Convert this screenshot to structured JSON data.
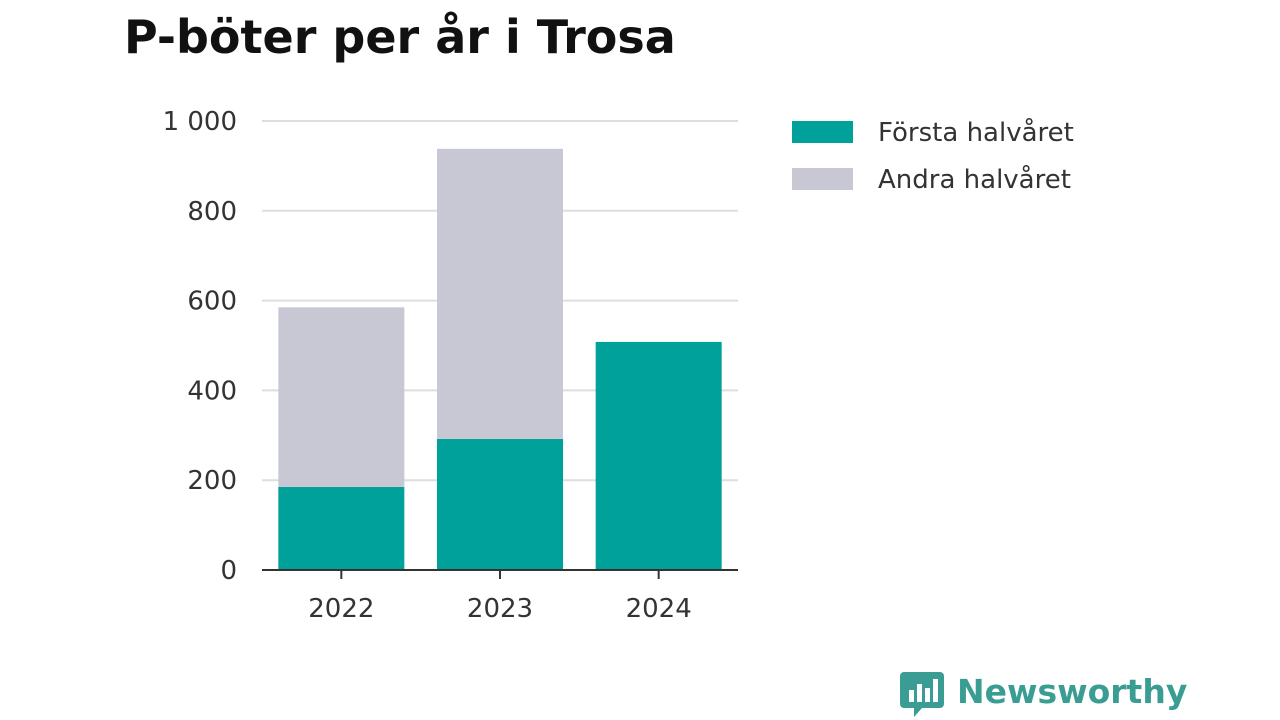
{
  "chart_data": {
    "type": "bar",
    "stacked": true,
    "title": "P-böter per år i Trosa",
    "xlabel": "",
    "ylabel": "",
    "categories": [
      "2022",
      "2023",
      "2024"
    ],
    "series": [
      {
        "name": "Första halvåret",
        "color": "#00a19a",
        "values": [
          185,
          292,
          508
        ]
      },
      {
        "name": "Andra halvåret",
        "color": "#c8c8d4",
        "values": [
          400,
          646,
          0
        ]
      }
    ],
    "ylim": [
      0,
      1000
    ],
    "yticks": [
      0,
      200,
      400,
      600,
      800,
      1000
    ],
    "ytick_labels": [
      "0",
      "200",
      "400",
      "600",
      "800",
      "1 000"
    ],
    "grid": true,
    "legend": "top-right"
  },
  "brand": {
    "name": "Newsworthy",
    "color": "#3a9d94",
    "icon": "bar-chart-speech-icon"
  }
}
